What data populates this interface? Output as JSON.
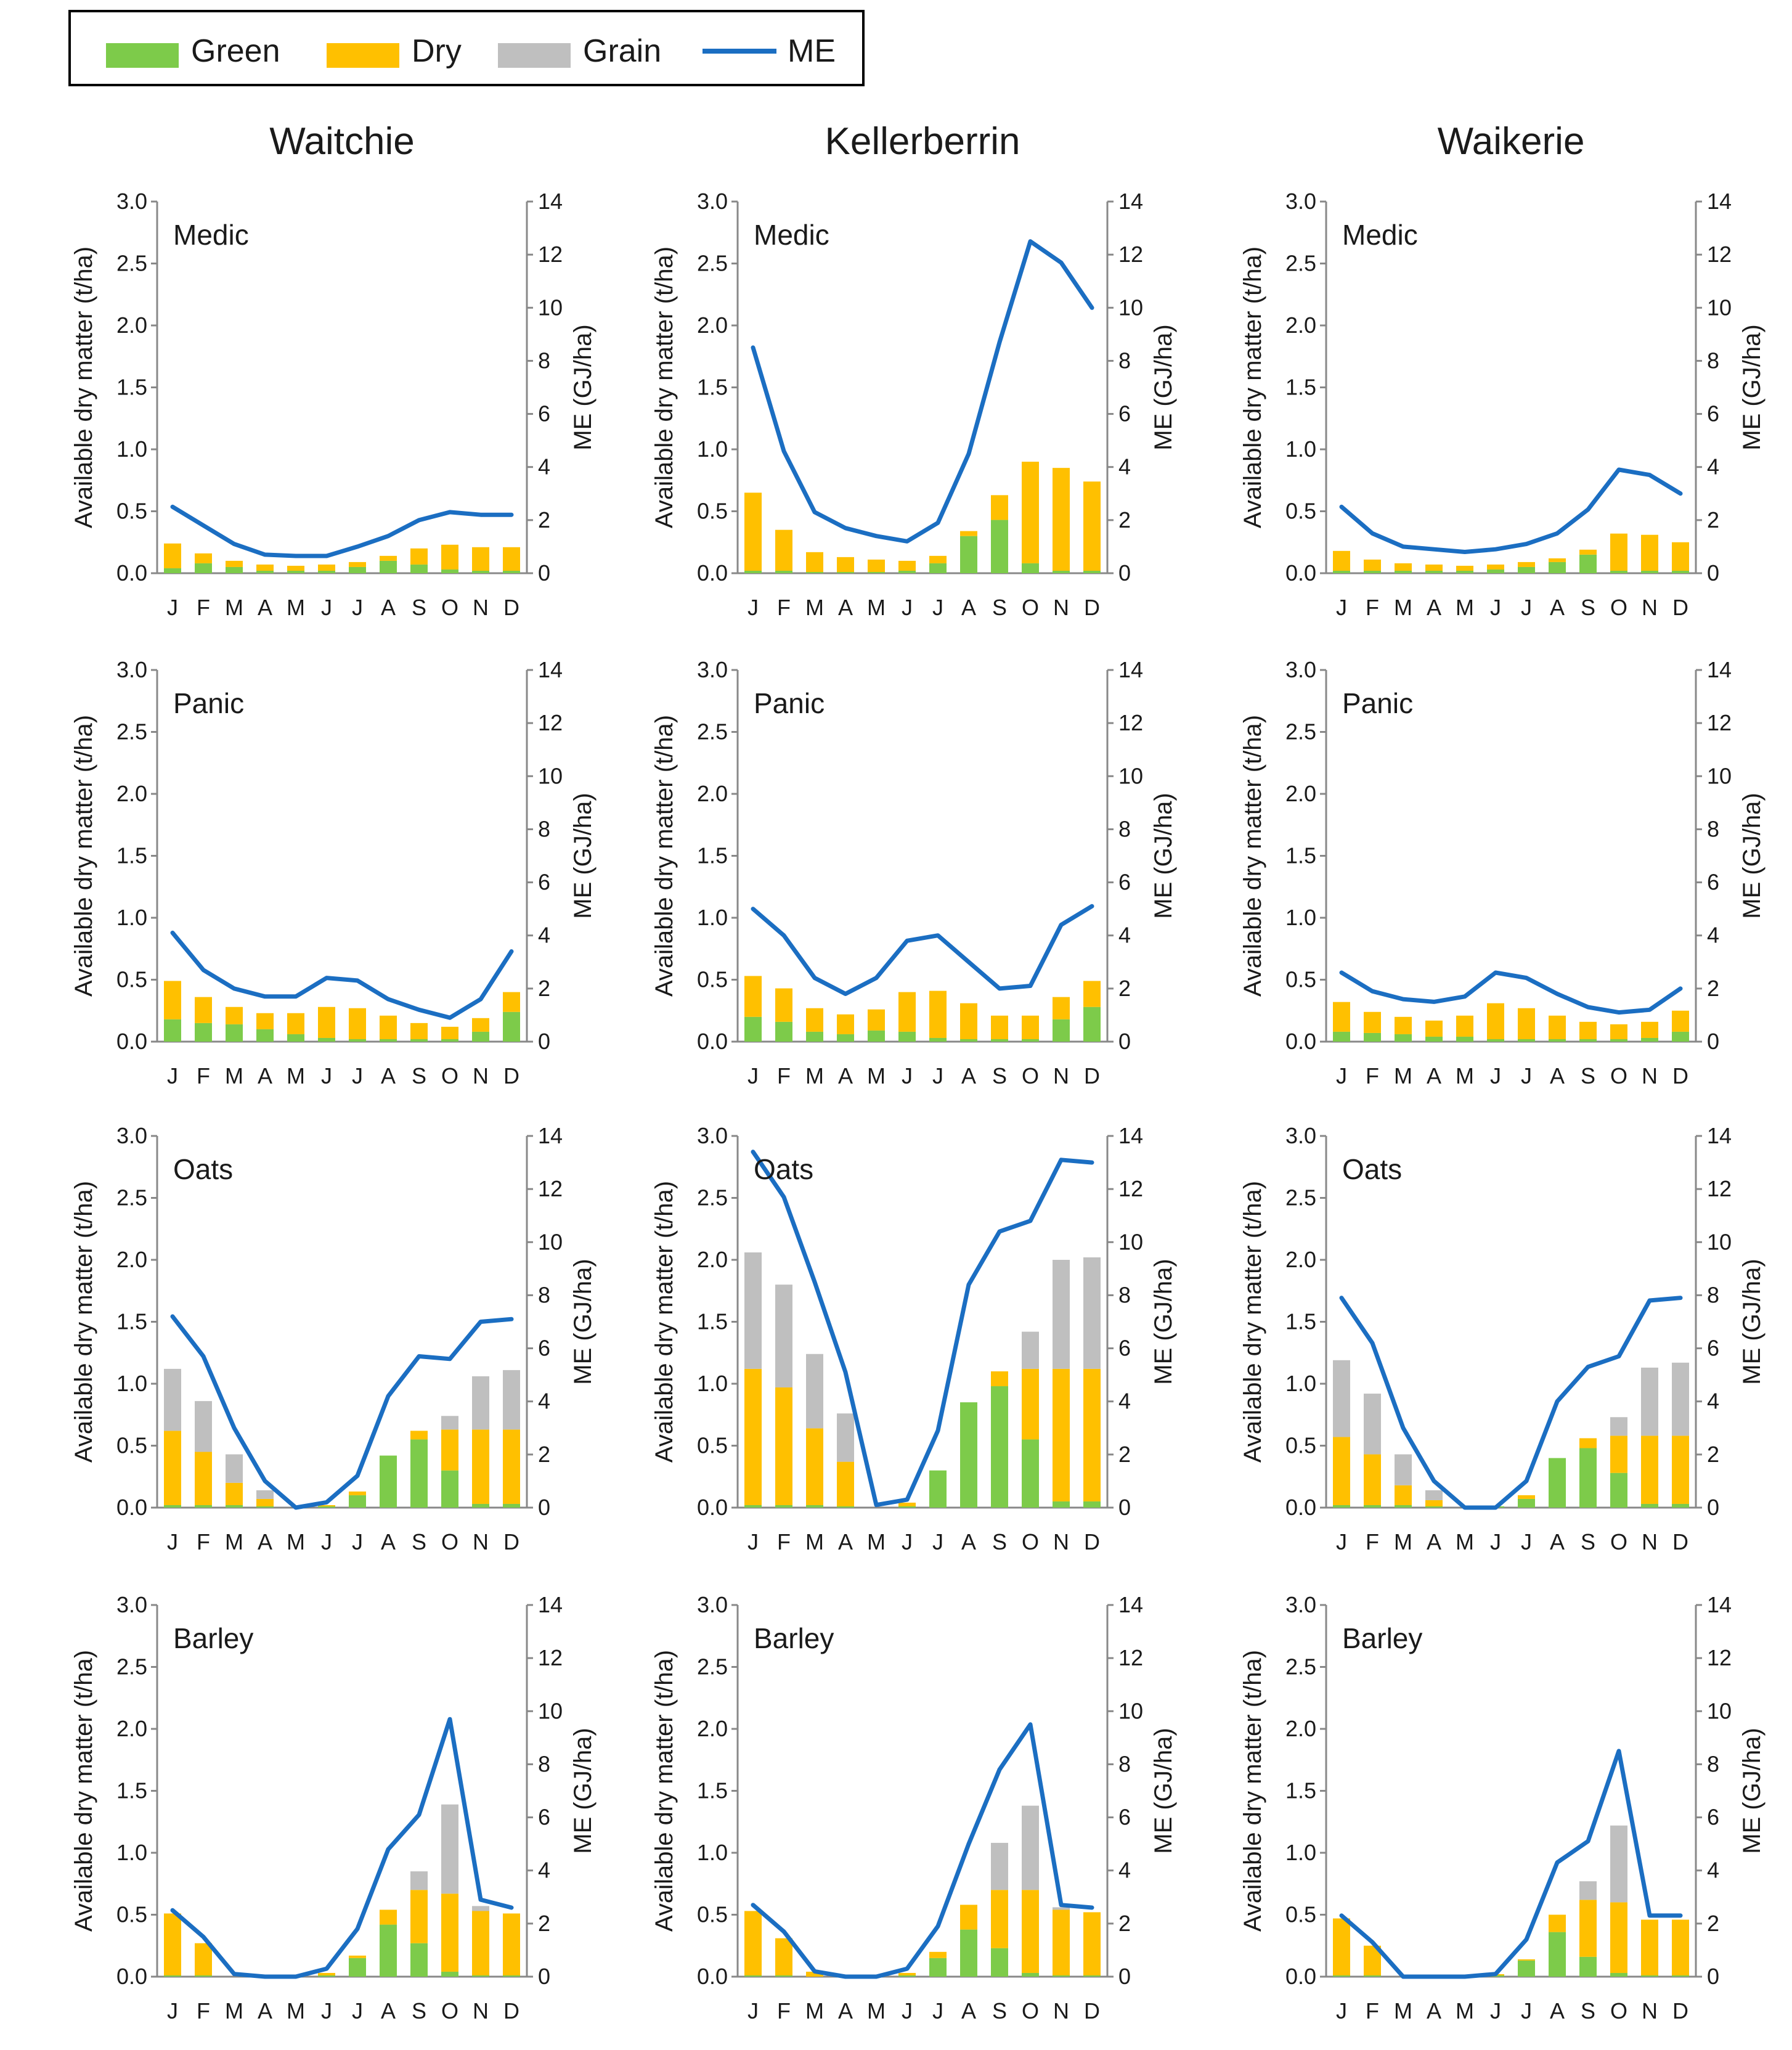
{
  "colors": {
    "green": "#7DCB4A",
    "dry": "#FFC000",
    "grain": "#BFBFBF",
    "me": "#1B6EC2",
    "axis": "#888888",
    "text": "#1a1a1a"
  },
  "legend": [
    {
      "key": "green",
      "label": "Green",
      "kind": "bar"
    },
    {
      "key": "dry",
      "label": "Dry",
      "kind": "bar"
    },
    {
      "key": "grain",
      "label": "Grain",
      "kind": "bar"
    },
    {
      "key": "me",
      "label": "ME",
      "kind": "line"
    }
  ],
  "sites": [
    "Waitchie",
    "Kellerberrin",
    "Waikerie"
  ],
  "crops": [
    "Medic",
    "Panic",
    "Oats",
    "Barley"
  ],
  "months": [
    "J",
    "F",
    "M",
    "A",
    "M",
    "J",
    "J",
    "A",
    "S",
    "O",
    "N",
    "D"
  ],
  "axes": {
    "y_left_label": "Available dry matter (t/ha)",
    "y_right_label": "ME (GJ/ha)",
    "y_left_ticks": [
      "0.0",
      "0.5",
      "1.0",
      "1.5",
      "2.0",
      "2.5",
      "3.0"
    ],
    "y_right_ticks": [
      "0",
      "2",
      "4",
      "6",
      "8",
      "10",
      "12",
      "14"
    ],
    "y_left_range": [
      0,
      3
    ],
    "y_right_range": [
      0,
      14
    ]
  },
  "chart_data": [
    {
      "type": "bar",
      "site": "Waitchie",
      "crop": "Medic",
      "title": "Medic",
      "green": [
        0.04,
        0.08,
        0.05,
        0.02,
        0.02,
        0.02,
        0.05,
        0.1,
        0.07,
        0.03,
        0.02,
        0.02
      ],
      "dry": [
        0.2,
        0.08,
        0.05,
        0.05,
        0.04,
        0.05,
        0.04,
        0.04,
        0.13,
        0.2,
        0.19,
        0.19
      ],
      "grain": [
        0,
        0,
        0,
        0,
        0,
        0,
        0,
        0,
        0,
        0,
        0,
        0
      ],
      "me": [
        2.5,
        1.8,
        1.1,
        0.7,
        0.65,
        0.65,
        1.0,
        1.4,
        2.0,
        2.3,
        2.2,
        2.2
      ]
    },
    {
      "type": "bar",
      "site": "Kellerberrin",
      "crop": "Medic",
      "title": "Medic",
      "green": [
        0.02,
        0.02,
        0.01,
        0.01,
        0.01,
        0.02,
        0.08,
        0.3,
        0.43,
        0.08,
        0.02,
        0.02
      ],
      "dry": [
        0.63,
        0.33,
        0.16,
        0.12,
        0.1,
        0.08,
        0.06,
        0.04,
        0.2,
        0.82,
        0.83,
        0.72
      ],
      "grain": [
        0,
        0,
        0,
        0,
        0,
        0,
        0,
        0,
        0,
        0,
        0,
        0
      ],
      "me": [
        8.5,
        4.6,
        2.3,
        1.7,
        1.4,
        1.2,
        1.9,
        4.5,
        8.7,
        12.5,
        11.7,
        10.0
      ]
    },
    {
      "type": "bar",
      "site": "Waikerie",
      "crop": "Medic",
      "title": "Medic",
      "green": [
        0.02,
        0.02,
        0.02,
        0.02,
        0.02,
        0.03,
        0.05,
        0.09,
        0.15,
        0.02,
        0.02,
        0.02
      ],
      "dry": [
        0.16,
        0.09,
        0.06,
        0.05,
        0.04,
        0.04,
        0.04,
        0.03,
        0.04,
        0.3,
        0.29,
        0.23
      ],
      "grain": [
        0,
        0,
        0,
        0,
        0,
        0,
        0,
        0,
        0,
        0,
        0,
        0
      ],
      "me": [
        2.5,
        1.5,
        1.0,
        0.9,
        0.8,
        0.9,
        1.1,
        1.5,
        2.4,
        3.9,
        3.7,
        3.0
      ]
    },
    {
      "type": "bar",
      "site": "Waitchie",
      "crop": "Panic",
      "title": "Panic",
      "green": [
        0.18,
        0.15,
        0.14,
        0.1,
        0.06,
        0.03,
        0.02,
        0.02,
        0.02,
        0.02,
        0.08,
        0.24
      ],
      "dry": [
        0.31,
        0.21,
        0.14,
        0.13,
        0.17,
        0.25,
        0.25,
        0.19,
        0.13,
        0.1,
        0.11,
        0.16
      ],
      "grain": [
        0,
        0,
        0,
        0,
        0,
        0,
        0,
        0,
        0,
        0,
        0,
        0
      ],
      "me": [
        4.1,
        2.7,
        2.0,
        1.7,
        1.7,
        2.4,
        2.3,
        1.6,
        1.2,
        0.9,
        1.6,
        3.4
      ]
    },
    {
      "type": "bar",
      "site": "Kellerberrin",
      "crop": "Panic",
      "title": "Panic",
      "green": [
        0.2,
        0.16,
        0.08,
        0.06,
        0.09,
        0.08,
        0.03,
        0.02,
        0.02,
        0.02,
        0.18,
        0.28
      ],
      "dry": [
        0.33,
        0.27,
        0.19,
        0.16,
        0.17,
        0.32,
        0.38,
        0.29,
        0.19,
        0.19,
        0.18,
        0.21
      ],
      "grain": [
        0,
        0,
        0,
        0,
        0,
        0,
        0,
        0,
        0,
        0,
        0,
        0
      ],
      "me": [
        5.0,
        4.0,
        2.4,
        1.8,
        2.4,
        3.8,
        4.0,
        3.0,
        2.0,
        2.1,
        4.4,
        5.1
      ]
    },
    {
      "type": "bar",
      "site": "Waikerie",
      "crop": "Panic",
      "title": "Panic",
      "green": [
        0.08,
        0.07,
        0.06,
        0.04,
        0.04,
        0.02,
        0.02,
        0.02,
        0.02,
        0.02,
        0.03,
        0.08
      ],
      "dry": [
        0.24,
        0.17,
        0.14,
        0.13,
        0.17,
        0.29,
        0.25,
        0.19,
        0.14,
        0.12,
        0.13,
        0.17
      ],
      "grain": [
        0,
        0,
        0,
        0,
        0,
        0,
        0,
        0,
        0,
        0,
        0,
        0
      ],
      "me": [
        2.6,
        1.9,
        1.6,
        1.5,
        1.7,
        2.6,
        2.4,
        1.8,
        1.3,
        1.1,
        1.2,
        2.0
      ]
    },
    {
      "type": "bar",
      "site": "Waitchie",
      "crop": "Oats",
      "title": "Oats",
      "green": [
        0.02,
        0.02,
        0.02,
        0.01,
        0,
        0.01,
        0.1,
        0.42,
        0.55,
        0.3,
        0.03,
        0.03
      ],
      "dry": [
        0.6,
        0.43,
        0.18,
        0.06,
        0,
        0.01,
        0.03,
        0,
        0.07,
        0.33,
        0.6,
        0.6
      ],
      "grain": [
        0.5,
        0.41,
        0.23,
        0.07,
        0,
        0,
        0,
        0,
        0,
        0.11,
        0.43,
        0.48
      ],
      "me": [
        7.2,
        5.7,
        3.0,
        1.0,
        0,
        0.2,
        1.2,
        4.2,
        5.7,
        5.6,
        7.0,
        7.1
      ]
    },
    {
      "type": "bar",
      "site": "Kellerberrin",
      "crop": "Oats",
      "title": "Oats",
      "green": [
        0.02,
        0.02,
        0.02,
        0.01,
        0,
        0.01,
        0.3,
        0.85,
        0.98,
        0.55,
        0.05,
        0.05
      ],
      "dry": [
        1.1,
        0.95,
        0.62,
        0.36,
        0,
        0.03,
        0,
        0,
        0.12,
        0.57,
        1.07,
        1.07
      ],
      "grain": [
        0.94,
        0.83,
        0.6,
        0.39,
        0,
        0,
        0,
        0,
        0,
        0.3,
        0.88,
        0.9
      ],
      "me": [
        13.4,
        11.7,
        8.5,
        5.1,
        0.1,
        0.3,
        2.9,
        8.4,
        10.4,
        10.8,
        13.1,
        13.0
      ]
    },
    {
      "type": "bar",
      "site": "Waikerie",
      "crop": "Oats",
      "title": "Oats",
      "green": [
        0.02,
        0.02,
        0.02,
        0.01,
        0,
        0.01,
        0.07,
        0.4,
        0.48,
        0.28,
        0.03,
        0.03
      ],
      "dry": [
        0.55,
        0.41,
        0.16,
        0.05,
        0,
        0,
        0.03,
        0,
        0.08,
        0.3,
        0.55,
        0.55
      ],
      "grain": [
        0.62,
        0.49,
        0.25,
        0.08,
        0,
        0,
        0,
        0,
        0,
        0.15,
        0.55,
        0.59
      ],
      "me": [
        7.9,
        6.2,
        3.0,
        1.0,
        0,
        0,
        1.0,
        4.0,
        5.3,
        5.7,
        7.8,
        7.9
      ]
    },
    {
      "type": "bar",
      "site": "Waitchie",
      "crop": "Barley",
      "title": "Barley",
      "green": [
        0.01,
        0.01,
        0,
        0,
        0,
        0.01,
        0.15,
        0.42,
        0.27,
        0.04,
        0.01,
        0.01
      ],
      "dry": [
        0.5,
        0.26,
        0,
        0,
        0,
        0.02,
        0.02,
        0.12,
        0.43,
        0.63,
        0.52,
        0.5
      ],
      "grain": [
        0,
        0,
        0,
        0,
        0,
        0,
        0,
        0,
        0.15,
        0.72,
        0.04,
        0
      ],
      "me": [
        2.5,
        1.5,
        0.1,
        0,
        0,
        0.3,
        1.8,
        4.8,
        6.1,
        9.7,
        2.9,
        2.6
      ]
    },
    {
      "type": "bar",
      "site": "Kellerberrin",
      "crop": "Barley",
      "title": "Barley",
      "green": [
        0.01,
        0.01,
        0,
        0,
        0,
        0.01,
        0.15,
        0.38,
        0.23,
        0.03,
        0.01,
        0.01
      ],
      "dry": [
        0.52,
        0.3,
        0.04,
        0,
        0,
        0.02,
        0.05,
        0.2,
        0.47,
        0.67,
        0.53,
        0.51
      ],
      "grain": [
        0,
        0,
        0,
        0,
        0,
        0,
        0,
        0,
        0.38,
        0.68,
        0.02,
        0
      ],
      "me": [
        2.7,
        1.7,
        0.2,
        0,
        0,
        0.3,
        1.9,
        5.0,
        7.8,
        9.5,
        2.7,
        2.6
      ]
    },
    {
      "type": "bar",
      "site": "Waikerie",
      "crop": "Barley",
      "title": "Barley",
      "green": [
        0.01,
        0.01,
        0,
        0,
        0,
        0.01,
        0.13,
        0.36,
        0.16,
        0.03,
        0.01,
        0.01
      ],
      "dry": [
        0.46,
        0.24,
        0,
        0,
        0,
        0.01,
        0.01,
        0.14,
        0.46,
        0.57,
        0.45,
        0.45
      ],
      "grain": [
        0,
        0,
        0,
        0,
        0,
        0,
        0,
        0,
        0.15,
        0.62,
        0,
        0
      ],
      "me": [
        2.3,
        1.3,
        0,
        0,
        0,
        0.1,
        1.4,
        4.3,
        5.1,
        8.5,
        2.3,
        2.3
      ]
    }
  ]
}
